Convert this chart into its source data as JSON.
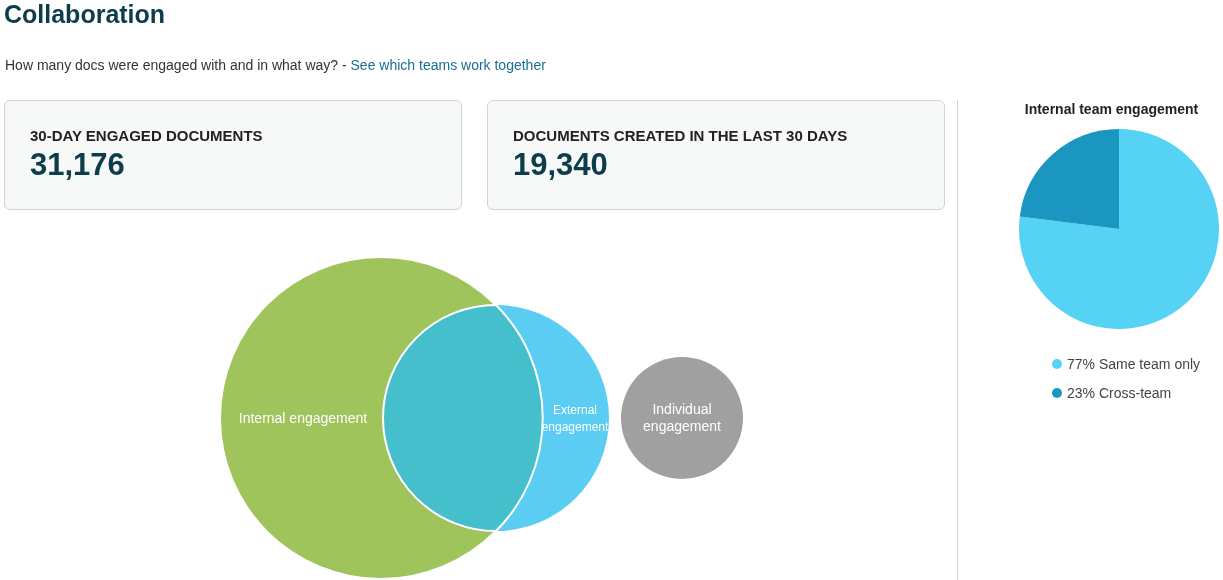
{
  "chart_data": [
    {
      "type": "other",
      "title": "Collaboration",
      "subtitle": "How many docs were engaged with and in what way? -",
      "annotations": [
        "See which teams work together",
        "30-DAY ENGAGED DOCUMENTS",
        "31,176",
        "DOCUMENTS CREATED IN THE LAST 30 DAYS",
        "19,340"
      ]
    },
    {
      "type": "other",
      "annotations": [
        "Internal engagement",
        "External engagement",
        "Individual engagement"
      ]
    },
    {
      "type": "pie",
      "title": "Internal team engagement",
      "categories": [
        "Same team only",
        "Cross-team"
      ],
      "values": [
        77,
        23
      ],
      "colors": [
        "#56d2f4",
        "#1b96c0"
      ],
      "value_labels": [
        "77%",
        "23%"
      ],
      "legend": "bottom"
    }
  ]
}
